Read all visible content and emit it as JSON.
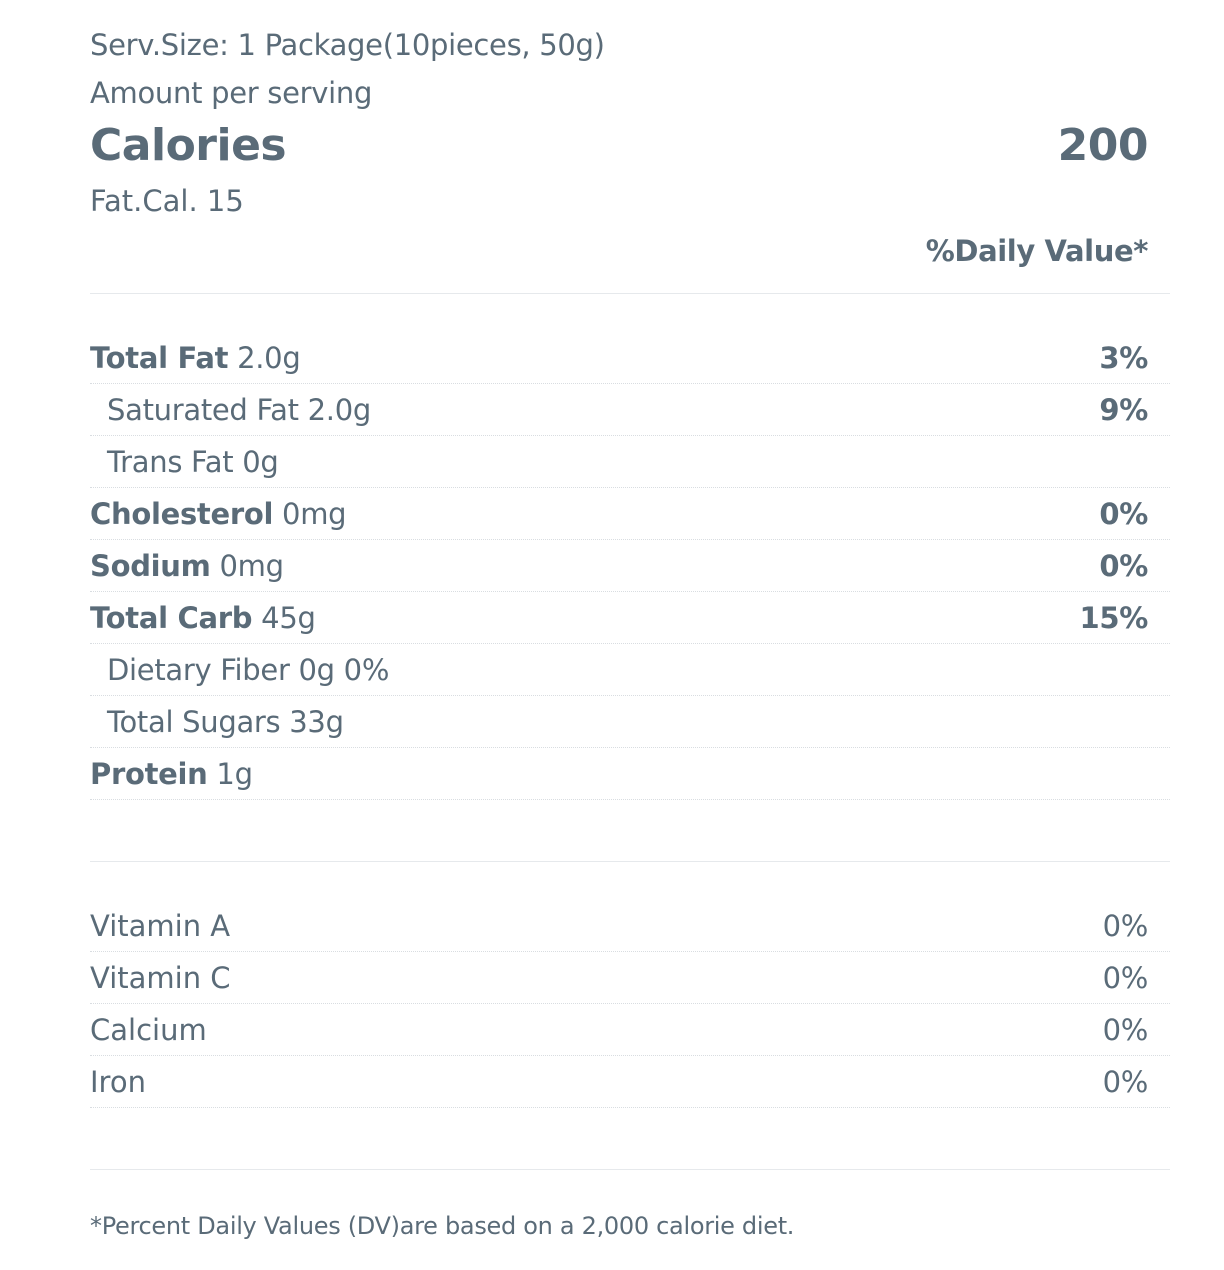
{
  "serving": {
    "size_line": "Serv.Size: 1 Package(10pieces, 50g)",
    "amount_label": "Amount per serving"
  },
  "calories": {
    "label": "Calories",
    "value": "200",
    "fat_calories": "Fat.Cal. 15"
  },
  "daily_value_header": "%Daily Value*",
  "nutrients": [
    {
      "name": "Total Fat",
      "amount": "2.0g",
      "pct": "3%"
    },
    {
      "name": "Saturated Fat",
      "amount": "2.0g",
      "pct": "9%"
    },
    {
      "name": "Trans Fat",
      "amount": "0g",
      "pct": ""
    },
    {
      "name": "Cholesterol",
      "amount": "0mg",
      "pct": "0%"
    },
    {
      "name": "Sodium",
      "amount": "0mg",
      "pct": "0%"
    },
    {
      "name": "Total Carb",
      "amount": "45g",
      "pct": "15%"
    },
    {
      "name": "Dietary Fiber",
      "amount": "0g 0%",
      "pct": ""
    },
    {
      "name": "Total Sugars",
      "amount": "33g",
      "pct": ""
    },
    {
      "name": "Protein",
      "amount": "1g",
      "pct": ""
    }
  ],
  "vitamins": [
    {
      "name": "Vitamin A",
      "pct": "0%"
    },
    {
      "name": "Vitamin C",
      "pct": "0%"
    },
    {
      "name": "Calcium",
      "pct": "0%"
    },
    {
      "name": "Iron",
      "pct": "0%"
    }
  ],
  "footnote": "*Percent Daily Values (DV)are based on a 2,000 calorie diet.",
  "colors": {
    "text": "#5a6b78",
    "rule": "#e6e9ec",
    "dotted_rule": "#d9dde1",
    "background": "#ffffff"
  }
}
